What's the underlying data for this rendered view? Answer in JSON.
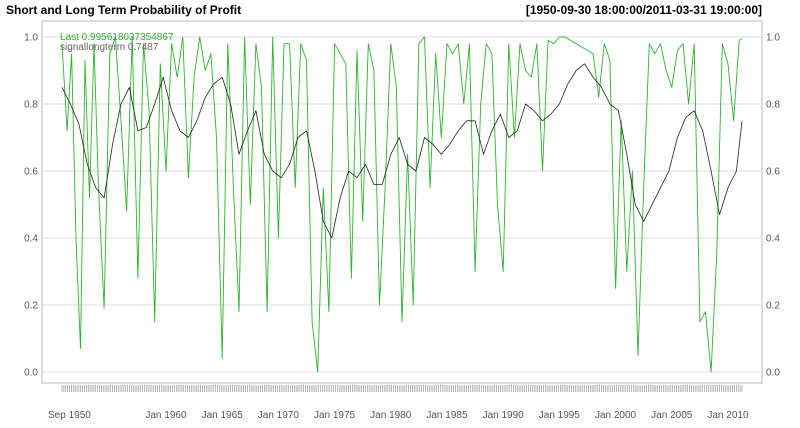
{
  "chart_data": {
    "type": "line",
    "title": "Short and Long Term Probability of Profit",
    "date_range_label": "[1950-09-30 18:00:00/2011-03-31 19:00:00]",
    "ylim": [
      0.0,
      1.0
    ],
    "y_ticks": [
      "0.0",
      "0.2",
      "0.4",
      "0.6",
      "0.8",
      "1.0"
    ],
    "x_tick_labels": [
      "Sep 1950",
      "Jan 1960",
      "Jan 1965",
      "Jan 1970",
      "Jan 1975",
      "Jan 1980",
      "Jan 1985",
      "Jan 1990",
      "Jan 1995",
      "Jan 2000",
      "Jan 2005",
      "Jan 2010"
    ],
    "x_tick_years": [
      1950.75,
      1960,
      1965,
      1970,
      1975,
      1980,
      1985,
      1990,
      1995,
      2000,
      2005,
      2010
    ],
    "x_range": [
      1950.75,
      2011.25
    ],
    "grid": true,
    "legend_position": "top-left",
    "legend": [
      {
        "text": "Last 0.995618037354867",
        "color": "#33aa33"
      },
      {
        "text": "signallongterm 0.7487",
        "color": "#666666"
      }
    ],
    "series": [
      {
        "name": "Last",
        "color": "#2db32d",
        "x": [
          1950.75,
          1951.2,
          1951.6,
          1952.0,
          1952.4,
          1952.8,
          1953.2,
          1953.6,
          1954.0,
          1954.5,
          1955.0,
          1955.5,
          1956.0,
          1956.5,
          1957.0,
          1957.5,
          1958.0,
          1958.5,
          1959.0,
          1959.5,
          1960.0,
          1960.5,
          1961.0,
          1961.5,
          1962.0,
          1962.5,
          1963.0,
          1963.5,
          1964.0,
          1964.5,
          1965.0,
          1965.5,
          1966.0,
          1966.5,
          1967.0,
          1967.5,
          1968.0,
          1968.5,
          1969.0,
          1969.5,
          1970.0,
          1970.5,
          1971.0,
          1971.5,
          1972.0,
          1972.5,
          1973.0,
          1973.5,
          1974.0,
          1974.5,
          1975.0,
          1975.5,
          1976.0,
          1976.5,
          1977.0,
          1977.5,
          1978.0,
          1978.5,
          1979.0,
          1979.5,
          1980.0,
          1980.5,
          1981.0,
          1981.5,
          1982.0,
          1982.5,
          1983.0,
          1983.5,
          1984.0,
          1984.5,
          1985.0,
          1985.5,
          1986.0,
          1986.5,
          1987.0,
          1987.5,
          1988.0,
          1988.5,
          1989.0,
          1989.5,
          1990.0,
          1990.5,
          1991.0,
          1991.5,
          1992.0,
          1992.5,
          1993.0,
          1993.5,
          1994.0,
          1994.5,
          1995.0,
          1995.5,
          1996.0,
          1996.5,
          1997.0,
          1997.5,
          1998.0,
          1998.5,
          1999.0,
          1999.5,
          2000.0,
          2000.5,
          2001.0,
          2001.5,
          2002.0,
          2002.5,
          2003.0,
          2003.5,
          2004.0,
          2004.5,
          2005.0,
          2005.5,
          2006.0,
          2006.5,
          2007.0,
          2007.5,
          2008.0,
          2008.5,
          2009.0,
          2009.5,
          2010.0,
          2010.5,
          2011.0,
          2011.25
        ],
        "y": [
          0.98,
          0.72,
          0.95,
          0.4,
          0.07,
          0.93,
          0.52,
          0.98,
          0.55,
          0.19,
          0.95,
          1.0,
          0.75,
          0.48,
          1.0,
          0.28,
          0.98,
          0.78,
          0.15,
          0.92,
          0.6,
          0.98,
          0.88,
          1.0,
          0.58,
          0.88,
          1.0,
          0.9,
          0.95,
          0.7,
          0.04,
          0.98,
          0.55,
          0.18,
          1.0,
          0.5,
          0.98,
          0.85,
          0.18,
          1.0,
          0.4,
          0.98,
          0.98,
          0.55,
          0.98,
          0.93,
          0.15,
          0.0,
          0.55,
          0.18,
          0.98,
          0.95,
          0.92,
          0.28,
          0.96,
          0.45,
          0.98,
          0.9,
          0.2,
          0.55,
          0.98,
          0.85,
          0.15,
          0.65,
          0.2,
          0.98,
          1.0,
          0.55,
          0.95,
          0.7,
          0.98,
          0.95,
          0.98,
          0.8,
          0.98,
          0.3,
          0.8,
          0.98,
          0.95,
          0.5,
          0.3,
          0.98,
          0.7,
          0.98,
          0.9,
          0.88,
          0.98,
          0.6,
          0.99,
          0.98,
          1.0,
          1.0,
          0.99,
          0.98,
          0.97,
          0.96,
          0.95,
          0.82,
          0.98,
          0.93,
          0.25,
          0.75,
          0.3,
          0.6,
          0.05,
          0.55,
          0.98,
          0.95,
          0.98,
          0.9,
          0.85,
          0.96,
          0.98,
          0.8,
          0.98,
          0.15,
          0.18,
          0.0,
          0.35,
          0.98,
          0.92,
          0.75,
          0.99,
          0.995618037354867
        ]
      },
      {
        "name": "signallongterm",
        "color": "#222222",
        "x": [
          1950.75,
          1951.5,
          1952.25,
          1953.0,
          1953.75,
          1954.5,
          1955.25,
          1956.0,
          1956.75,
          1957.5,
          1958.25,
          1959.0,
          1959.75,
          1960.5,
          1961.25,
          1962.0,
          1962.75,
          1963.5,
          1964.25,
          1965.0,
          1965.75,
          1966.5,
          1967.25,
          1968.0,
          1968.75,
          1969.5,
          1970.25,
          1971.0,
          1971.75,
          1972.5,
          1973.25,
          1974.0,
          1974.75,
          1975.5,
          1976.25,
          1977.0,
          1977.75,
          1978.5,
          1979.25,
          1980.0,
          1980.75,
          1981.5,
          1982.25,
          1983.0,
          1983.75,
          1984.5,
          1985.25,
          1986.0,
          1986.75,
          1987.5,
          1988.25,
          1989.0,
          1989.75,
          1990.5,
          1991.25,
          1992.0,
          1992.75,
          1993.5,
          1994.25,
          1995.0,
          1995.75,
          1996.5,
          1997.25,
          1998.0,
          1998.75,
          1999.5,
          2000.25,
          2001.0,
          2001.75,
          2002.5,
          2003.25,
          2004.0,
          2004.75,
          2005.5,
          2006.25,
          2007.0,
          2007.75,
          2008.5,
          2009.25,
          2010.0,
          2010.75,
          2011.25
        ],
        "y": [
          0.85,
          0.8,
          0.74,
          0.62,
          0.55,
          0.52,
          0.68,
          0.8,
          0.85,
          0.72,
          0.73,
          0.8,
          0.88,
          0.78,
          0.72,
          0.7,
          0.75,
          0.82,
          0.86,
          0.88,
          0.8,
          0.65,
          0.72,
          0.78,
          0.65,
          0.6,
          0.58,
          0.62,
          0.7,
          0.72,
          0.6,
          0.45,
          0.4,
          0.52,
          0.6,
          0.58,
          0.62,
          0.56,
          0.56,
          0.65,
          0.7,
          0.62,
          0.6,
          0.7,
          0.68,
          0.65,
          0.68,
          0.72,
          0.75,
          0.75,
          0.65,
          0.72,
          0.77,
          0.7,
          0.72,
          0.8,
          0.78,
          0.75,
          0.77,
          0.8,
          0.86,
          0.9,
          0.92,
          0.88,
          0.85,
          0.8,
          0.78,
          0.65,
          0.5,
          0.45,
          0.5,
          0.55,
          0.6,
          0.7,
          0.76,
          0.78,
          0.72,
          0.6,
          0.47,
          0.55,
          0.6,
          0.7487
        ]
      }
    ]
  }
}
